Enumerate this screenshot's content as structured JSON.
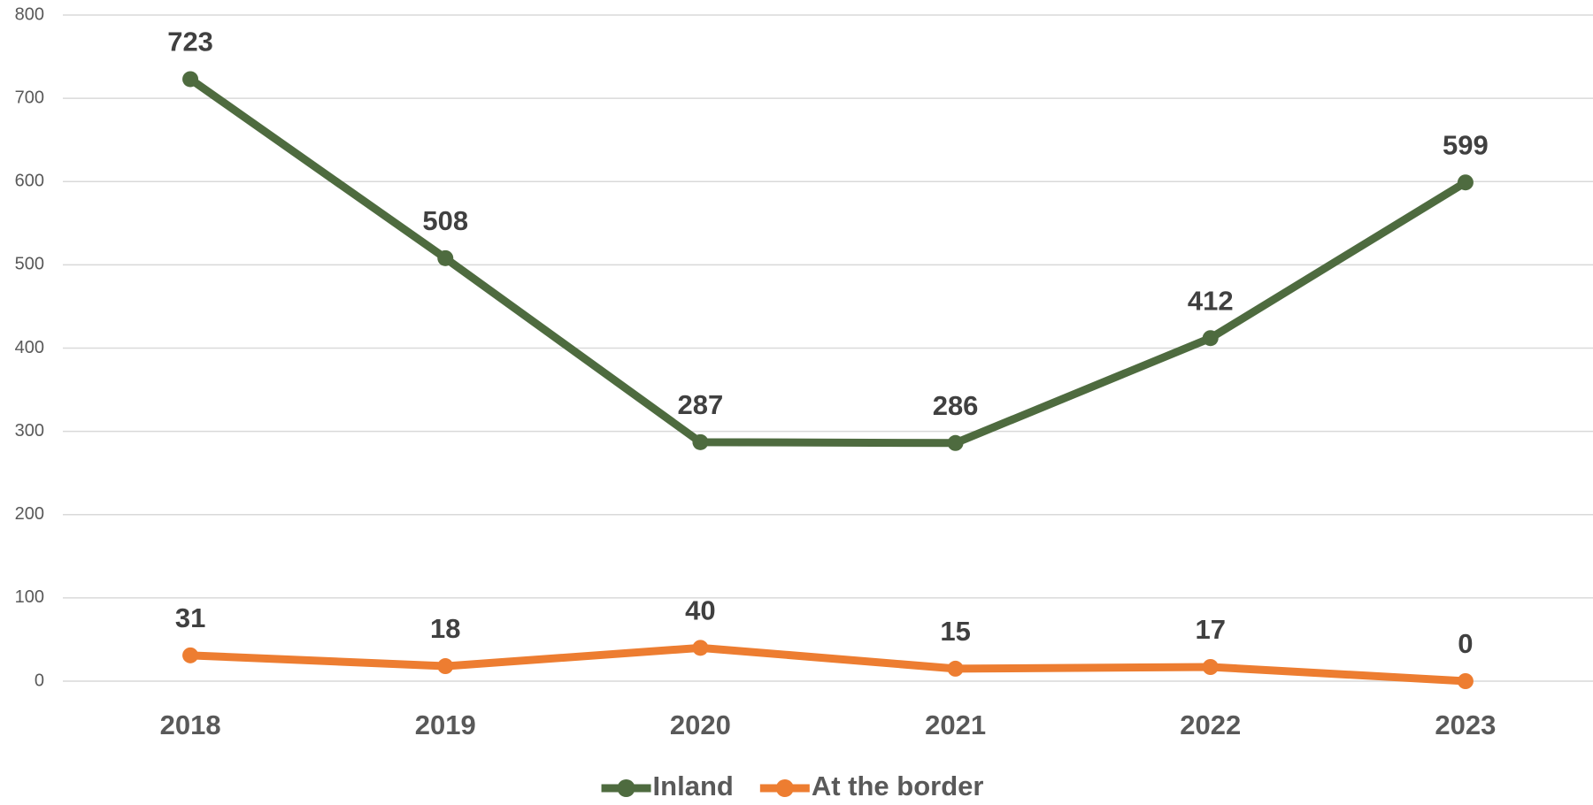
{
  "chart_data": {
    "type": "line",
    "categories": [
      "2018",
      "2019",
      "2020",
      "2021",
      "2022",
      "2023"
    ],
    "series": [
      {
        "name": "Inland",
        "color": "#4e6b3f",
        "values": [
          723,
          508,
          287,
          286,
          412,
          599
        ]
      },
      {
        "name": "At the border",
        "color": "#ed7d31",
        "values": [
          31,
          18,
          40,
          15,
          17,
          0
        ]
      }
    ],
    "ylim": [
      0,
      800
    ],
    "yticks": [
      0,
      100,
      200,
      300,
      400,
      500,
      600,
      700,
      800
    ],
    "grid": true,
    "legend": "bottom"
  }
}
